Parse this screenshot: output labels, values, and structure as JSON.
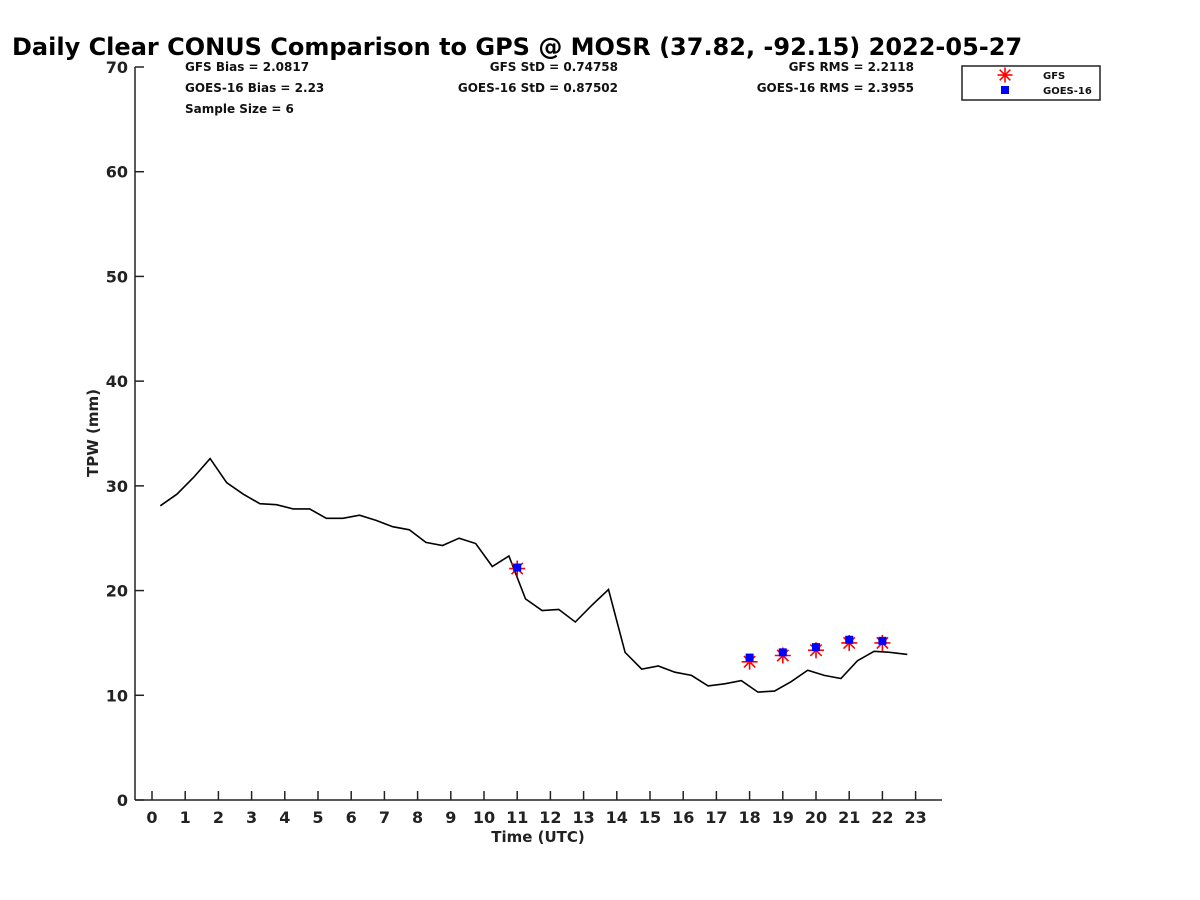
{
  "chart_data": {
    "type": "line",
    "title": "Daily Clear CONUS Comparison to GPS @ MOSR (37.82, -92.15) 2022-05-27",
    "xlabel": "Time (UTC)",
    "ylabel": "TPW (mm)",
    "xlim": [
      -0.5,
      24
    ],
    "ylim": [
      0,
      70
    ],
    "x_ticks": [
      0,
      1,
      2,
      3,
      4,
      5,
      6,
      7,
      8,
      9,
      10,
      11,
      12,
      13,
      14,
      15,
      16,
      17,
      18,
      19,
      20,
      21,
      22,
      23
    ],
    "y_ticks": [
      0,
      10,
      20,
      30,
      40,
      50,
      60,
      70
    ],
    "grid": false,
    "legend_position": "top-right",
    "stats": {
      "gfs_bias": "GFS Bias = 2.0817",
      "goes_bias": "GOES-16 Bias = 2.23",
      "sample_size": "Sample Size = 6",
      "gfs_std": "GFS StD = 0.74758",
      "goes_std": "GOES-16 StD = 0.87502",
      "gfs_rms": "GFS RMS = 2.2118",
      "goes_rms": "GOES-16 RMS = 2.3955"
    },
    "series": [
      {
        "kind": "line",
        "color": "#000000",
        "x": [
          0.25,
          0.75,
          1.25,
          1.75,
          2.25,
          2.75,
          3.25,
          3.75,
          4.25,
          4.75,
          5.25,
          5.75,
          6.25,
          6.75,
          7.25,
          7.75,
          8.25,
          8.75,
          9.25,
          9.75,
          10.25,
          10.75,
          11.25,
          11.75,
          12.25,
          12.75,
          13.25,
          13.75,
          14.25,
          14.75,
          15.25,
          15.75,
          16.25,
          16.75,
          17.25,
          17.75,
          18.25,
          18.75,
          19.25,
          19.75,
          20.25,
          20.75,
          21.25,
          21.75,
          22.25,
          22.75
        ],
        "y": [
          28.1,
          29.2,
          30.8,
          32.6,
          30.3,
          29.2,
          28.3,
          28.2,
          27.8,
          27.8,
          26.9,
          26.9,
          27.2,
          26.7,
          26.1,
          25.8,
          24.6,
          24.3,
          25.0,
          24.5,
          22.3,
          23.3,
          19.2,
          18.1,
          18.2,
          17.0,
          18.6,
          20.1,
          14.1,
          12.5,
          12.8,
          12.2,
          11.9,
          10.9,
          11.1,
          11.4,
          10.3,
          10.4,
          11.3,
          12.4,
          11.9,
          11.6,
          13.3,
          14.2,
          14.1,
          13.9
        ]
      },
      {
        "name": "GFS",
        "kind": "marker",
        "marker": "asterisk",
        "color": "#ff0000",
        "x": [
          11,
          18,
          19,
          20,
          21,
          22
        ],
        "y": [
          22.1,
          13.2,
          13.8,
          14.3,
          15.0,
          15.0
        ]
      },
      {
        "name": "GOES-16",
        "kind": "marker",
        "marker": "square",
        "color": "#0000ff",
        "x": [
          11,
          18,
          19,
          20,
          21,
          22
        ],
        "y": [
          22.2,
          13.6,
          14.1,
          14.6,
          15.3,
          15.2
        ]
      }
    ]
  }
}
